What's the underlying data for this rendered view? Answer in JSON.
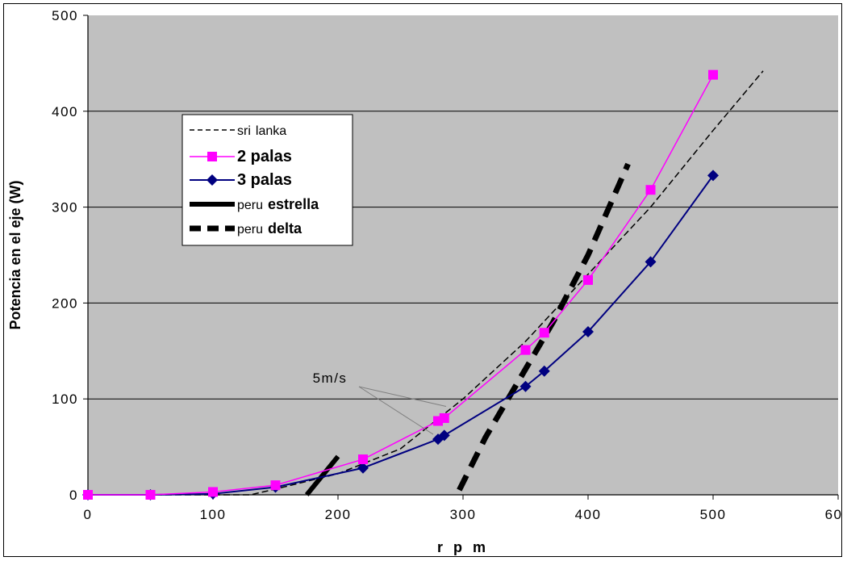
{
  "chart_data": {
    "type": "line",
    "title": "",
    "xlabel": "r p m",
    "ylabel": "Potencia en el eje (W)",
    "xlim": [
      0,
      600
    ],
    "ylim": [
      0,
      500
    ],
    "x_ticks": [
      "0",
      "100",
      "200",
      "300",
      "400",
      "500",
      "600"
    ],
    "y_ticks": [
      "0",
      "100",
      "200",
      "300",
      "400",
      "500"
    ],
    "grid": "horizontal",
    "plot_background": "#c0c0c0",
    "legend_position": "upper-left inside plot",
    "annotation": "5m/s",
    "series": [
      {
        "name": "sri lanka",
        "legend_parts": [
          "sri",
          "lanka"
        ],
        "color": "#000000",
        "style": "thin-dashed",
        "x": [
          0,
          50,
          100,
          130,
          150,
          200,
          250,
          300,
          350,
          400,
          450,
          500,
          540
        ],
        "y": [
          0,
          0,
          0,
          0,
          6,
          22,
          48,
          100,
          160,
          230,
          300,
          380,
          442
        ]
      },
      {
        "name": "2 palas",
        "legend_parts": [
          "2 palas"
        ],
        "color": "#ff00ff",
        "style": "solid-square",
        "x": [
          0,
          50,
          100,
          150,
          220,
          280,
          285,
          350,
          365,
          400,
          450,
          500
        ],
        "y": [
          0,
          0,
          3,
          10,
          37,
          77,
          80,
          151,
          169,
          224,
          318,
          438
        ]
      },
      {
        "name": "3 palas",
        "legend_parts": [
          "3 palas"
        ],
        "color": "#000080",
        "style": "solid-diamond",
        "x": [
          0,
          50,
          100,
          150,
          220,
          280,
          285,
          350,
          365,
          400,
          450,
          500
        ],
        "y": [
          0,
          0,
          1,
          8,
          28,
          58,
          62,
          113,
          129,
          170,
          243,
          333
        ]
      },
      {
        "name": "peru estrella",
        "legend_parts": [
          "peru",
          "estrella"
        ],
        "color": "#000000",
        "style": "thick-solid",
        "x": [
          175,
          200
        ],
        "y": [
          0,
          40
        ]
      },
      {
        "name": "peru delta",
        "legend_parts": [
          "peru",
          "delta"
        ],
        "color": "#000000",
        "style": "thick-dashed",
        "x": [
          297,
          318,
          345,
          372,
          400,
          432
        ],
        "y": [
          5,
          60,
          120,
          180,
          250,
          345
        ]
      }
    ]
  }
}
